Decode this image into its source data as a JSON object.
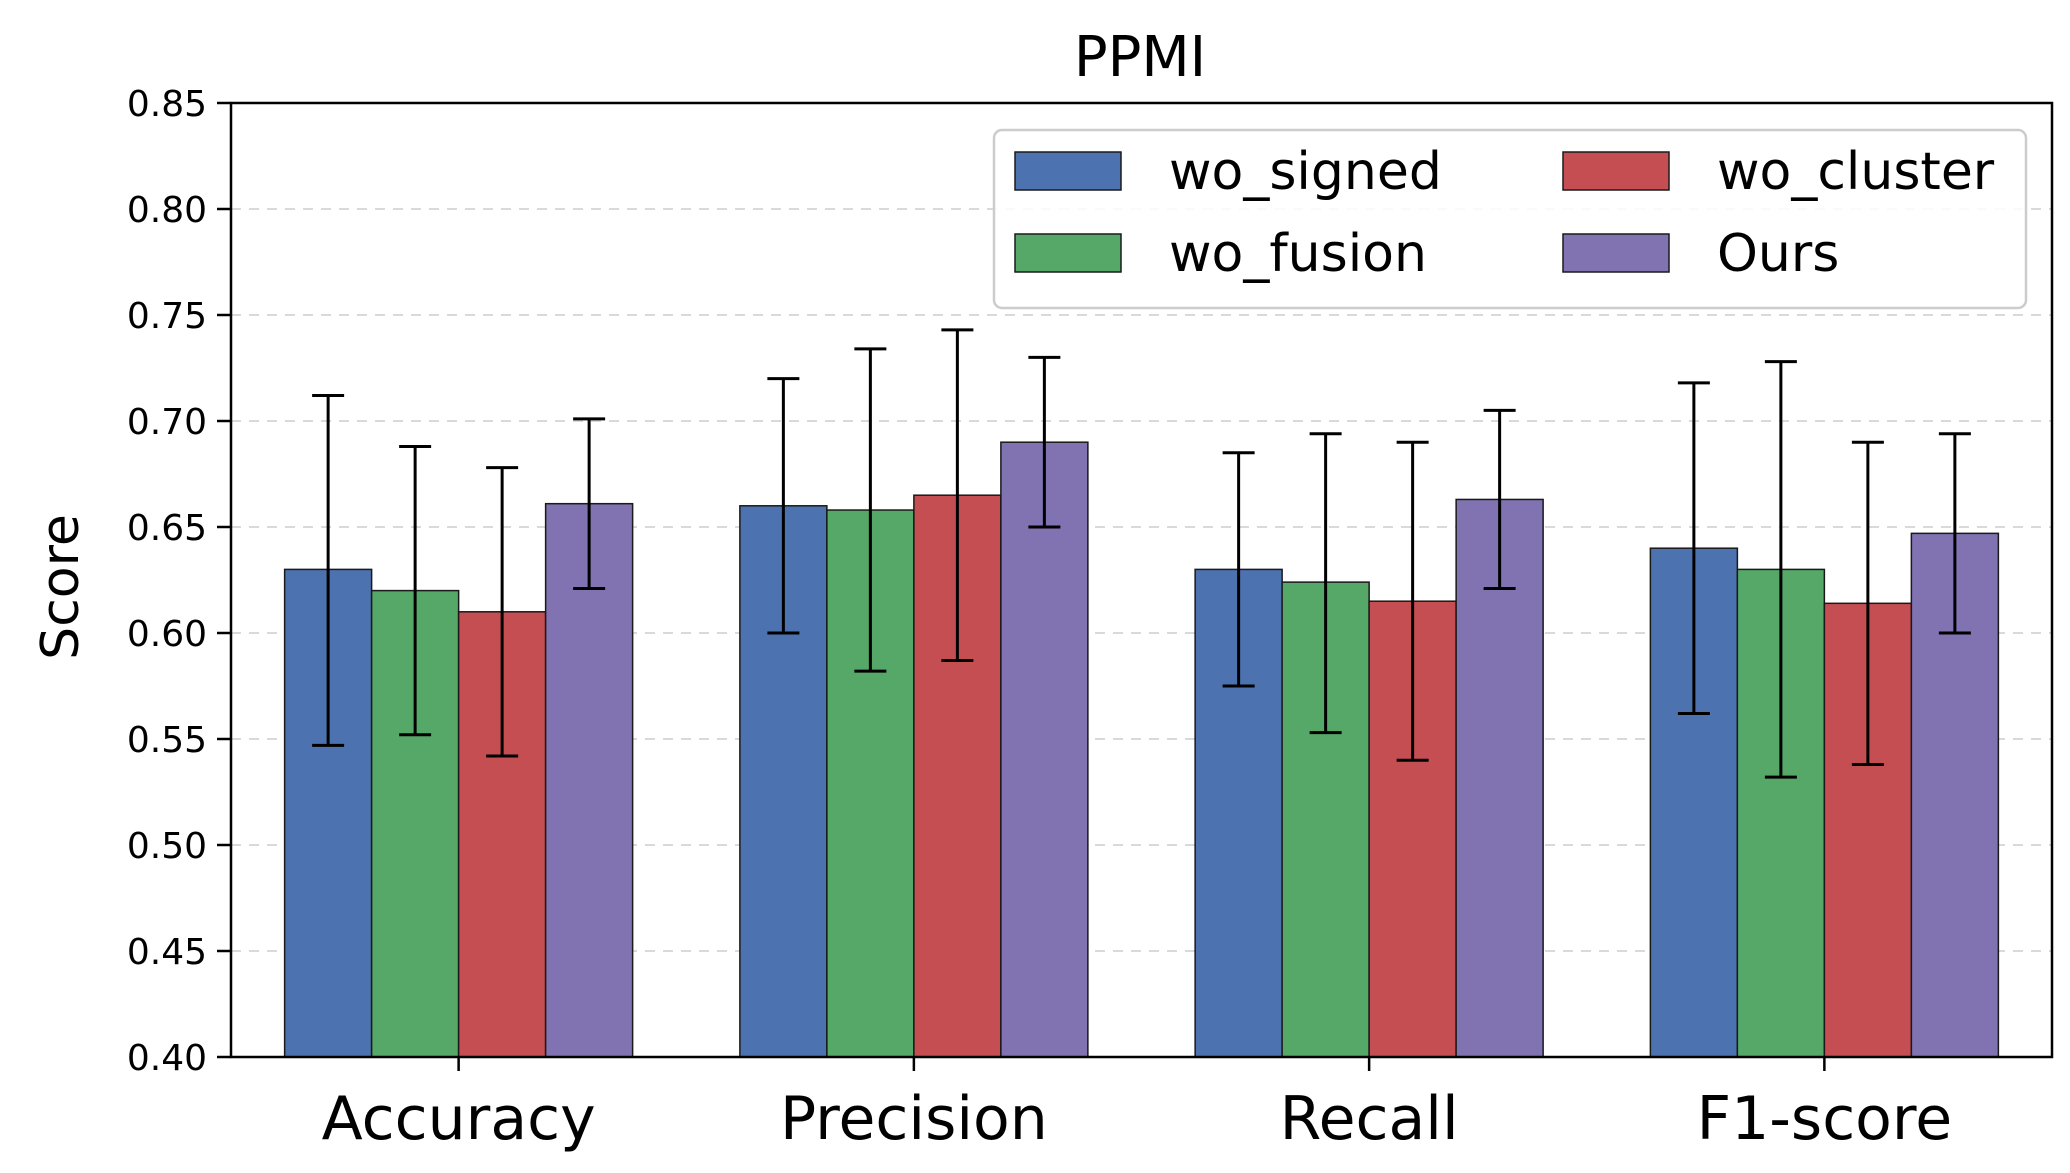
{
  "chart_data": {
    "type": "bar",
    "title": "PPMI",
    "xlabel": "",
    "ylabel": "Score",
    "ylim": [
      0.4,
      0.85
    ],
    "yticks": [
      "0.40",
      "0.45",
      "0.50",
      "0.55",
      "0.60",
      "0.65",
      "0.70",
      "0.75",
      "0.80",
      "0.85"
    ],
    "categories": [
      "Accuracy",
      "Precision",
      "Recall",
      "F1-score"
    ],
    "grid": "horizontal dashed",
    "legend_position": "top-right",
    "series": [
      {
        "name": "wo_signed",
        "color": "#4c72b0",
        "values": [
          0.63,
          0.66,
          0.63,
          0.64
        ],
        "err_low": [
          0.547,
          0.6,
          0.575,
          0.562
        ],
        "err_high": [
          0.712,
          0.72,
          0.685,
          0.718
        ]
      },
      {
        "name": "wo_fusion",
        "color": "#55a868",
        "values": [
          0.62,
          0.658,
          0.624,
          0.63
        ],
        "err_low": [
          0.552,
          0.582,
          0.553,
          0.532
        ],
        "err_high": [
          0.688,
          0.734,
          0.694,
          0.728
        ]
      },
      {
        "name": "wo_cluster",
        "color": "#c44e52",
        "values": [
          0.61,
          0.665,
          0.615,
          0.614
        ],
        "err_low": [
          0.542,
          0.587,
          0.54,
          0.538
        ],
        "err_high": [
          0.678,
          0.743,
          0.69,
          0.69
        ]
      },
      {
        "name": "Ours",
        "color": "#8172b2",
        "values": [
          0.661,
          0.69,
          0.663,
          0.647
        ],
        "err_low": [
          0.621,
          0.65,
          0.621,
          0.6
        ],
        "err_high": [
          0.701,
          0.73,
          0.705,
          0.694
        ]
      }
    ]
  }
}
